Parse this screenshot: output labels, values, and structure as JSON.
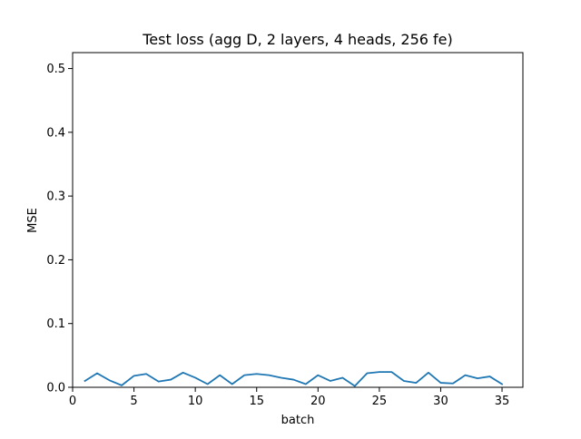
{
  "chart_data": {
    "type": "line",
    "title": "Test loss (agg D, 2 layers, 4 heads, 256 fe)",
    "xlabel": "batch",
    "ylabel": "MSE",
    "xlim": [
      0,
      36.7
    ],
    "ylim": [
      0,
      0.525
    ],
    "xticks": [
      0,
      5,
      10,
      15,
      20,
      25,
      30,
      35
    ],
    "yticks": [
      0.0,
      0.1,
      0.2,
      0.3,
      0.4,
      0.5
    ],
    "xtick_labels": [
      "0",
      "5",
      "10",
      "15",
      "20",
      "25",
      "30",
      "35"
    ],
    "ytick_labels": [
      "0.0",
      "0.1",
      "0.2",
      "0.3",
      "0.4",
      "0.5"
    ],
    "grid": false,
    "legend": "none",
    "series": [
      {
        "color": "#1f77b4",
        "x": [
          1,
          2,
          3,
          4,
          5,
          6,
          7,
          8,
          9,
          10,
          11,
          12,
          13,
          14,
          15,
          16,
          17,
          18,
          19,
          20,
          21,
          22,
          23,
          24,
          25,
          26,
          27,
          28,
          29,
          30,
          31,
          32,
          33,
          34,
          35
        ],
        "y": [
          0.01,
          0.022,
          0.011,
          0.003,
          0.018,
          0.021,
          0.009,
          0.012,
          0.023,
          0.015,
          0.005,
          0.019,
          0.005,
          0.019,
          0.021,
          0.019,
          0.015,
          0.012,
          0.005,
          0.019,
          0.01,
          0.015,
          0.002,
          0.022,
          0.024,
          0.024,
          0.01,
          0.007,
          0.023,
          0.007,
          0.006,
          0.019,
          0.014,
          0.017,
          0.005
        ]
      }
    ]
  }
}
